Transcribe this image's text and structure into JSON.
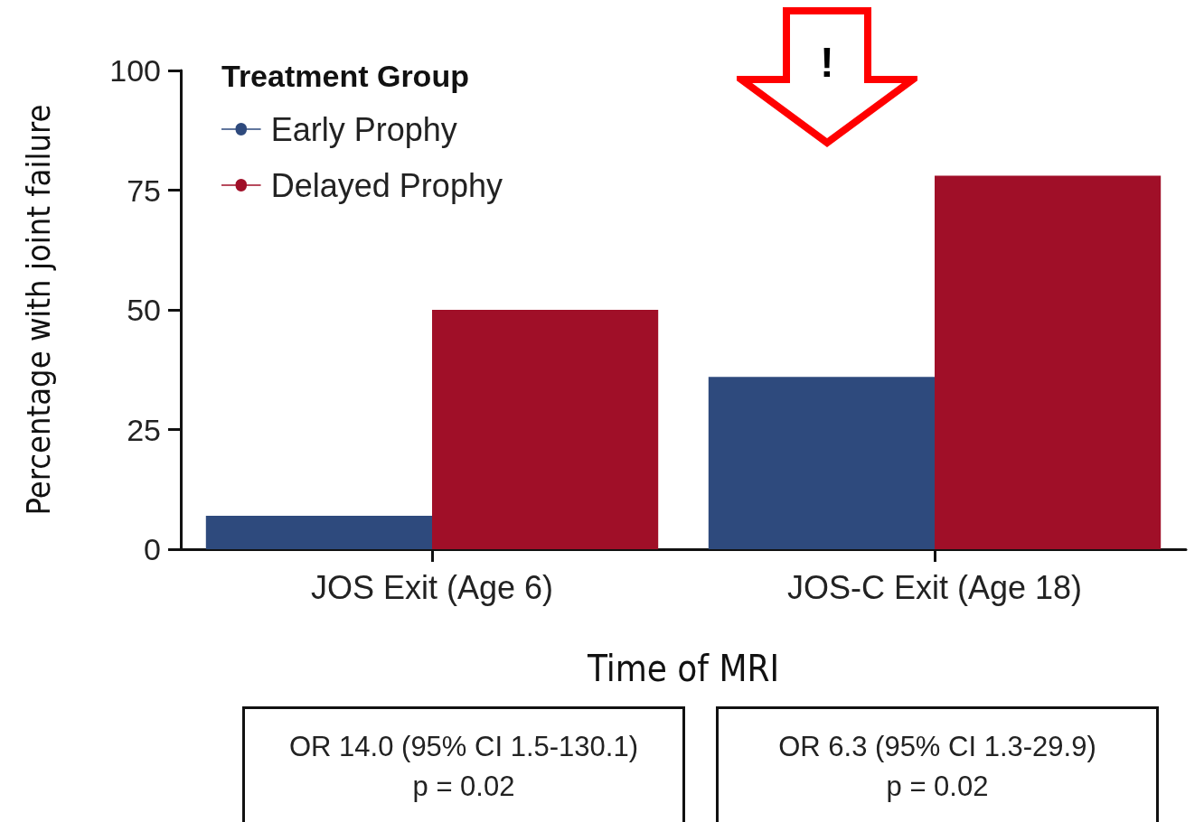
{
  "chart_data": {
    "type": "bar",
    "legend_title": "Treatment Group",
    "categories": [
      "JOS Exit (Age 6)",
      "JOS-C Exit (Age 18)"
    ],
    "series": [
      {
        "name": "Early Prophy",
        "color": "#2e4a7d",
        "values": [
          7,
          36
        ]
      },
      {
        "name": "Delayed Prophy",
        "color": "#a00f28",
        "values": [
          50,
          78
        ]
      }
    ],
    "xlabel": "Time of MRI",
    "ylabel": "Percentage with joint failure",
    "ylim": [
      0,
      100
    ],
    "yticks": [
      0,
      25,
      50,
      75,
      100
    ],
    "grid": false,
    "legend": "top left",
    "annotations": [
      "!",
      "OR 14.0 (95% CI 1.5-130.1)\np = 0.02",
      "OR 6.3 (95% CI 1.3-29.9)\np = 0.02"
    ]
  }
}
